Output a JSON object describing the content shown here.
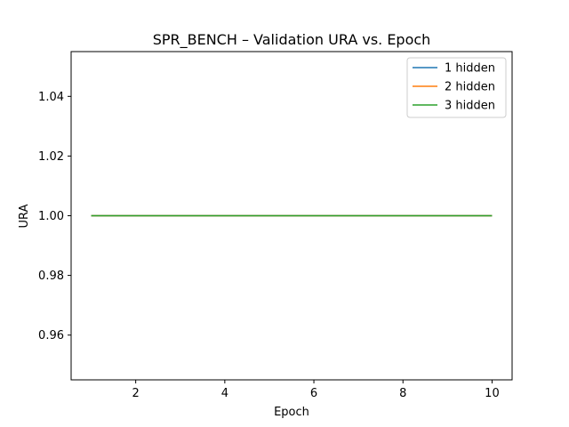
{
  "chart_data": {
    "type": "line",
    "title": "SPR_BENCH – Validation URA vs. Epoch",
    "xlabel": "Epoch",
    "ylabel": "URA",
    "xlim": [
      0.55,
      10.45
    ],
    "ylim": [
      0.945,
      1.055
    ],
    "xticks": [
      2,
      4,
      6,
      8,
      10
    ],
    "xtick_labels": [
      "2",
      "4",
      "6",
      "8",
      "10"
    ],
    "yticks": [
      0.96,
      0.98,
      1.0,
      1.02,
      1.04
    ],
    "ytick_labels": [
      "0.96",
      "0.98",
      "1.00",
      "1.02",
      "1.04"
    ],
    "grid": false,
    "legend_position": "top-right",
    "x": [
      1,
      2,
      3,
      4,
      5,
      6,
      7,
      8,
      9,
      10
    ],
    "series": [
      {
        "name": "1 hidden",
        "color": "#1f77b4",
        "values": [
          1.0,
          1.0,
          1.0,
          1.0,
          1.0,
          1.0,
          1.0,
          1.0,
          1.0,
          1.0
        ]
      },
      {
        "name": "2 hidden",
        "color": "#ff7f0e",
        "values": [
          1.0,
          1.0,
          1.0,
          1.0,
          1.0,
          1.0,
          1.0,
          1.0,
          1.0,
          1.0
        ]
      },
      {
        "name": "3 hidden",
        "color": "#2ca02c",
        "values": [
          1.0,
          1.0,
          1.0,
          1.0,
          1.0,
          1.0,
          1.0,
          1.0,
          1.0,
          1.0
        ]
      }
    ]
  }
}
